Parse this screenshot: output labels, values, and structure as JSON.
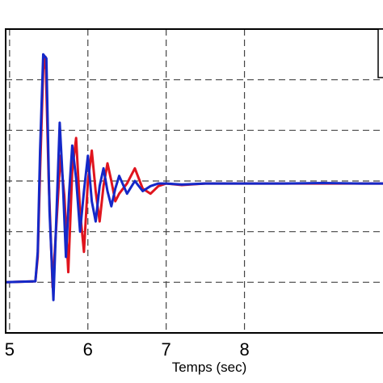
{
  "chart_data": {
    "type": "line",
    "title": "",
    "xlabel": "Temps (sec)",
    "ylabel": "",
    "xlim": [
      4.95,
      9.8
    ],
    "ylim": [
      0,
      6
    ],
    "xticks": [
      5,
      6,
      7,
      8
    ],
    "xtick_labels": [
      "5",
      "6",
      "7",
      "8"
    ],
    "yticks": [
      1,
      2,
      3,
      4,
      5
    ],
    "grid": true,
    "legend": "top-right (partially visible, entries cropped)",
    "series": [
      {
        "color": "#e0141e",
        "x": [
          4.95,
          5.33,
          5.36,
          5.39,
          5.43,
          5.46,
          5.5,
          5.55,
          5.6,
          5.65,
          5.7,
          5.75,
          5.8,
          5.85,
          5.9,
          5.95,
          6.0,
          6.05,
          6.1,
          6.15,
          6.2,
          6.25,
          6.3,
          6.35,
          6.4,
          6.5,
          6.6,
          6.7,
          6.8,
          6.9,
          7.0,
          7.2,
          7.5,
          8.0,
          8.5,
          9.0,
          9.5,
          9.8
        ],
        "y": [
          1.0,
          1.02,
          1.5,
          3.2,
          5.2,
          5.45,
          3.0,
          0.9,
          2.2,
          3.5,
          2.7,
          1.2,
          3.2,
          3.85,
          2.4,
          1.6,
          3.0,
          3.6,
          2.8,
          2.2,
          2.9,
          3.35,
          3.0,
          2.6,
          2.75,
          2.95,
          3.25,
          2.85,
          2.75,
          2.9,
          2.95,
          2.92,
          2.95,
          2.95,
          2.95,
          2.95,
          2.95,
          2.95
        ]
      },
      {
        "color": "#1428c8",
        "x": [
          4.95,
          5.33,
          5.36,
          5.39,
          5.43,
          5.47,
          5.51,
          5.56,
          5.6,
          5.64,
          5.68,
          5.72,
          5.76,
          5.8,
          5.85,
          5.9,
          5.95,
          6.0,
          6.05,
          6.1,
          6.15,
          6.2,
          6.25,
          6.3,
          6.35,
          6.4,
          6.5,
          6.6,
          6.7,
          6.8,
          6.9,
          7.0,
          7.2,
          7.5,
          8.0,
          8.5,
          9.0,
          9.5,
          9.8
        ],
        "y": [
          1.0,
          1.02,
          1.6,
          3.6,
          5.5,
          5.42,
          2.4,
          0.65,
          2.4,
          4.15,
          3.0,
          1.5,
          2.75,
          3.7,
          3.05,
          2.0,
          2.8,
          3.5,
          2.6,
          2.2,
          2.9,
          3.25,
          2.8,
          2.5,
          2.85,
          3.1,
          2.75,
          3.0,
          2.8,
          2.9,
          2.95,
          2.95,
          2.93,
          2.95,
          2.95,
          2.95,
          2.96,
          2.95,
          2.95
        ]
      }
    ]
  }
}
